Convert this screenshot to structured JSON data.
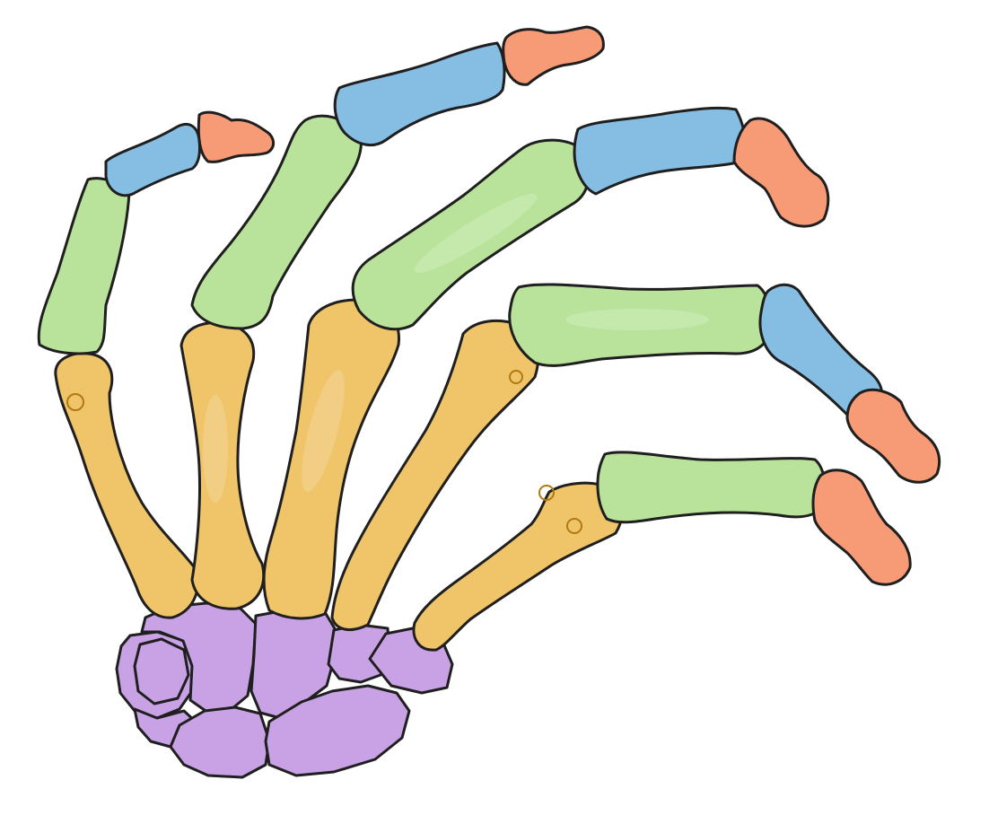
{
  "diagram": {
    "subject": "hand-skeleton",
    "bone_groups": [
      {
        "name": "carpals",
        "color": "#c9a2e6",
        "count": 8
      },
      {
        "name": "metacarpals",
        "color": "#f0c469",
        "count": 5
      },
      {
        "name": "proximal-phalanges",
        "color": "#b9e39a",
        "count": 5
      },
      {
        "name": "middle-phalanges",
        "color": "#86bde3",
        "count": 4
      },
      {
        "name": "distal-phalanges",
        "color": "#f79a76",
        "count": 5
      }
    ],
    "outline_color": "#1f1f1f",
    "background": "#ffffff"
  }
}
